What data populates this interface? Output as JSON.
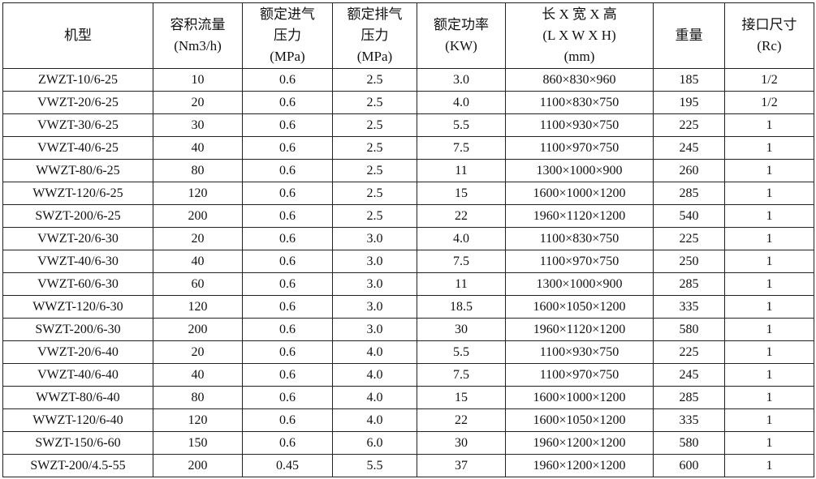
{
  "table": {
    "headers": [
      [
        "机型"
      ],
      [
        "容积流量",
        "(Nm3/h)"
      ],
      [
        "额定进气",
        "压力",
        "(MPa)"
      ],
      [
        "额定排气",
        "压力",
        "(MPa)"
      ],
      [
        "额定功率",
        "(KW)"
      ],
      [
        "长 X 宽 X 高",
        "(L X W X H)",
        "(mm)"
      ],
      [
        "重量"
      ],
      [
        "接口尺寸",
        "(Rc)"
      ]
    ],
    "rows": [
      [
        "ZWZT-10/6-25",
        "10",
        "0.6",
        "2.5",
        "3.0",
        "860×830×960",
        "185",
        "1/2"
      ],
      [
        "VWZT-20/6-25",
        "20",
        "0.6",
        "2.5",
        "4.0",
        "1100×830×750",
        "195",
        "1/2"
      ],
      [
        "VWZT-30/6-25",
        "30",
        "0.6",
        "2.5",
        "5.5",
        "1100×930×750",
        "225",
        "1"
      ],
      [
        "VWZT-40/6-25",
        "40",
        "0.6",
        "2.5",
        "7.5",
        "1100×970×750",
        "245",
        "1"
      ],
      [
        "WWZT-80/6-25",
        "80",
        "0.6",
        "2.5",
        "11",
        "1300×1000×900",
        "260",
        "1"
      ],
      [
        "WWZT-120/6-25",
        "120",
        "0.6",
        "2.5",
        "15",
        "1600×1000×1200",
        "285",
        "1"
      ],
      [
        "SWZT-200/6-25",
        "200",
        "0.6",
        "2.5",
        "22",
        "1960×1120×1200",
        "540",
        "1"
      ],
      [
        "VWZT-20/6-30",
        "20",
        "0.6",
        "3.0",
        "4.0",
        "1100×830×750",
        "225",
        "1"
      ],
      [
        "VWZT-40/6-30",
        "40",
        "0.6",
        "3.0",
        "7.5",
        "1100×970×750",
        "250",
        "1"
      ],
      [
        "VWZT-60/6-30",
        "60",
        "0.6",
        "3.0",
        "11",
        "1300×1000×900",
        "285",
        "1"
      ],
      [
        "WWZT-120/6-30",
        "120",
        "0.6",
        "3.0",
        "18.5",
        "1600×1050×1200",
        "335",
        "1"
      ],
      [
        "SWZT-200/6-30",
        "200",
        "0.6",
        "3.0",
        "30",
        "1960×1120×1200",
        "580",
        "1"
      ],
      [
        "VWZT-20/6-40",
        "20",
        "0.6",
        "4.0",
        "5.5",
        "1100×930×750",
        "225",
        "1"
      ],
      [
        "VWZT-40/6-40",
        "40",
        "0.6",
        "4.0",
        "7.5",
        "1100×970×750",
        "245",
        "1"
      ],
      [
        "WWZT-80/6-40",
        "80",
        "0.6",
        "4.0",
        "15",
        "1600×1000×1200",
        "285",
        "1"
      ],
      [
        "WWZT-120/6-40",
        "120",
        "0.6",
        "4.0",
        "22",
        "1600×1050×1200",
        "335",
        "1"
      ],
      [
        "SWZT-150/6-60",
        "150",
        "0.6",
        "6.0",
        "30",
        "1960×1200×1200",
        "580",
        "1"
      ],
      [
        "SWZT-200/4.5-55",
        "200",
        "0.45",
        "5.5",
        "37",
        "1960×1200×1200",
        "600",
        "1"
      ]
    ]
  }
}
